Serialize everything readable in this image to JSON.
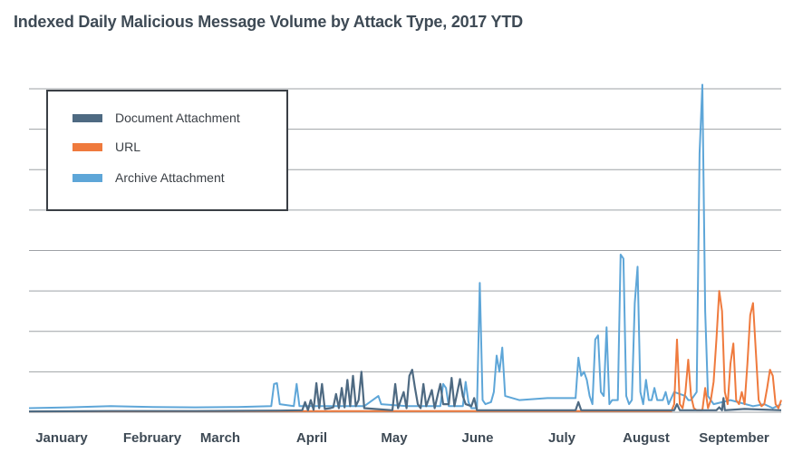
{
  "chart_data": {
    "type": "line",
    "title": "Indexed Daily Malicious Message Volume by Attack Type, 2017 YTD",
    "xlabel": "",
    "ylabel": "",
    "x_tick_labels": [
      "January",
      "February",
      "March",
      "April",
      "May",
      "June",
      "July",
      "August",
      "September"
    ],
    "x_range_days": [
      1,
      268
    ],
    "y_range": [
      0,
      8
    ],
    "y_gridlines": [
      0,
      1,
      2,
      3,
      4,
      5,
      6,
      7,
      8
    ],
    "grid": "horizontal",
    "legend_position": "top-left",
    "series": [
      {
        "name": "Document Attachment",
        "color": "#4e6a82",
        "points": [
          [
            1,
            0.02
          ],
          [
            30,
            0.03
          ],
          [
            60,
            0.03
          ],
          [
            90,
            0.04
          ],
          [
            98,
            0.05
          ],
          [
            99,
            0.25
          ],
          [
            100,
            0.05
          ],
          [
            101,
            0.3
          ],
          [
            102,
            0.06
          ],
          [
            103,
            0.72
          ],
          [
            104,
            0.1
          ],
          [
            105,
            0.7
          ],
          [
            106,
            0.08
          ],
          [
            108,
            0.1
          ],
          [
            109,
            0.12
          ],
          [
            110,
            0.45
          ],
          [
            111,
            0.1
          ],
          [
            112,
            0.6
          ],
          [
            113,
            0.12
          ],
          [
            114,
            0.8
          ],
          [
            115,
            0.15
          ],
          [
            116,
            0.9
          ],
          [
            117,
            0.15
          ],
          [
            118,
            0.3
          ],
          [
            119,
            1.0
          ],
          [
            120,
            0.1
          ],
          [
            130,
            0.05
          ],
          [
            131,
            0.7
          ],
          [
            132,
            0.1
          ],
          [
            134,
            0.5
          ],
          [
            135,
            0.1
          ],
          [
            136,
            0.9
          ],
          [
            137,
            1.05
          ],
          [
            138,
            0.6
          ],
          [
            139,
            0.2
          ],
          [
            140,
            0.1
          ],
          [
            141,
            0.7
          ],
          [
            142,
            0.15
          ],
          [
            144,
            0.55
          ],
          [
            145,
            0.1
          ],
          [
            146,
            0.4
          ],
          [
            147,
            0.7
          ],
          [
            148,
            0.2
          ],
          [
            150,
            0.2
          ],
          [
            151,
            0.85
          ],
          [
            152,
            0.15
          ],
          [
            154,
            0.82
          ],
          [
            155,
            0.4
          ],
          [
            156,
            0.2
          ],
          [
            158,
            0.15
          ],
          [
            159,
            0.35
          ],
          [
            160,
            0.05
          ],
          [
            180,
            0.05
          ],
          [
            195,
            0.05
          ],
          [
            196,
            0.25
          ],
          [
            197,
            0.05
          ],
          [
            230,
            0.05
          ],
          [
            231,
            0.2
          ],
          [
            232,
            0.05
          ],
          [
            245,
            0.05
          ],
          [
            246,
            0.12
          ],
          [
            247,
            0.05
          ],
          [
            247.5,
            0.35
          ],
          [
            248,
            0.05
          ],
          [
            255,
            0.08
          ],
          [
            268,
            0.05
          ]
        ]
      },
      {
        "name": "URL",
        "color": "#ef7a3d",
        "points": [
          [
            1,
            0.02
          ],
          [
            150,
            0.03
          ],
          [
            229,
            0.03
          ],
          [
            230,
            0.2
          ],
          [
            231,
            1.8
          ],
          [
            232,
            0.2
          ],
          [
            233,
            0.1
          ],
          [
            234,
            0.5
          ],
          [
            235,
            1.3
          ],
          [
            236,
            0.4
          ],
          [
            237,
            0.1
          ],
          [
            238,
            0.05
          ],
          [
            240,
            0.05
          ],
          [
            241,
            0.6
          ],
          [
            242,
            0.1
          ],
          [
            243,
            0.3
          ],
          [
            244,
            0.75
          ],
          [
            245,
            1.8
          ],
          [
            246,
            3.0
          ],
          [
            247,
            2.5
          ],
          [
            248,
            0.5
          ],
          [
            249,
            0.2
          ],
          [
            250,
            1.2
          ],
          [
            251,
            1.7
          ],
          [
            252,
            0.3
          ],
          [
            253,
            0.2
          ],
          [
            254,
            0.5
          ],
          [
            255,
            0.2
          ],
          [
            256,
            1.2
          ],
          [
            257,
            2.4
          ],
          [
            258,
            2.7
          ],
          [
            259,
            1.5
          ],
          [
            260,
            0.3
          ],
          [
            261,
            0.15
          ],
          [
            262,
            0.2
          ],
          [
            263,
            0.6
          ],
          [
            264,
            1.05
          ],
          [
            265,
            0.9
          ],
          [
            266,
            0.2
          ],
          [
            267,
            0.1
          ],
          [
            268,
            0.3
          ]
        ]
      },
      {
        "name": "Archive Attachment",
        "color": "#5ea6d8",
        "points": [
          [
            1,
            0.1
          ],
          [
            15,
            0.12
          ],
          [
            30,
            0.15
          ],
          [
            45,
            0.13
          ],
          [
            60,
            0.12
          ],
          [
            75,
            0.13
          ],
          [
            87,
            0.15
          ],
          [
            88,
            0.7
          ],
          [
            89,
            0.72
          ],
          [
            90,
            0.2
          ],
          [
            95,
            0.15
          ],
          [
            96,
            0.7
          ],
          [
            97,
            0.15
          ],
          [
            110,
            0.15
          ],
          [
            120,
            0.15
          ],
          [
            125,
            0.4
          ],
          [
            126,
            0.2
          ],
          [
            135,
            0.15
          ],
          [
            147,
            0.15
          ],
          [
            148,
            0.7
          ],
          [
            149,
            0.6
          ],
          [
            150,
            0.15
          ],
          [
            155,
            0.15
          ],
          [
            156,
            0.75
          ],
          [
            157,
            0.25
          ],
          [
            158,
            0.1
          ],
          [
            160,
            0.1
          ],
          [
            161,
            3.2
          ],
          [
            162,
            0.3
          ],
          [
            163,
            0.2
          ],
          [
            165,
            0.25
          ],
          [
            166,
            0.5
          ],
          [
            167,
            1.4
          ],
          [
            168,
            1.0
          ],
          [
            169,
            1.6
          ],
          [
            170,
            0.4
          ],
          [
            175,
            0.3
          ],
          [
            185,
            0.35
          ],
          [
            195,
            0.35
          ],
          [
            196,
            1.35
          ],
          [
            197,
            0.9
          ],
          [
            198,
            1.0
          ],
          [
            199,
            0.8
          ],
          [
            200,
            0.4
          ],
          [
            201,
            0.2
          ],
          [
            202,
            1.8
          ],
          [
            203,
            1.9
          ],
          [
            204,
            0.5
          ],
          [
            205,
            0.4
          ],
          [
            206,
            2.1
          ],
          [
            207,
            0.2
          ],
          [
            208,
            0.3
          ],
          [
            210,
            0.3
          ],
          [
            211,
            3.9
          ],
          [
            212,
            3.8
          ],
          [
            213,
            0.4
          ],
          [
            214,
            0.2
          ],
          [
            215,
            0.3
          ],
          [
            216,
            2.7
          ],
          [
            217,
            3.6
          ],
          [
            218,
            0.5
          ],
          [
            219,
            0.2
          ],
          [
            220,
            0.8
          ],
          [
            221,
            0.3
          ],
          [
            222,
            0.3
          ],
          [
            223,
            0.6
          ],
          [
            224,
            0.3
          ],
          [
            226,
            0.3
          ],
          [
            227,
            0.5
          ],
          [
            228,
            0.2
          ],
          [
            230,
            0.5
          ],
          [
            234,
            0.4
          ],
          [
            235,
            0.3
          ],
          [
            236,
            0.3
          ],
          [
            238,
            0.5
          ],
          [
            239,
            6.4
          ],
          [
            240,
            8.1
          ],
          [
            241,
            2.5
          ],
          [
            242,
            0.4
          ],
          [
            244,
            0.2
          ],
          [
            250,
            0.3
          ],
          [
            258,
            0.15
          ],
          [
            262,
            0.2
          ],
          [
            265,
            0.1
          ],
          [
            268,
            0.2
          ]
        ]
      }
    ]
  }
}
